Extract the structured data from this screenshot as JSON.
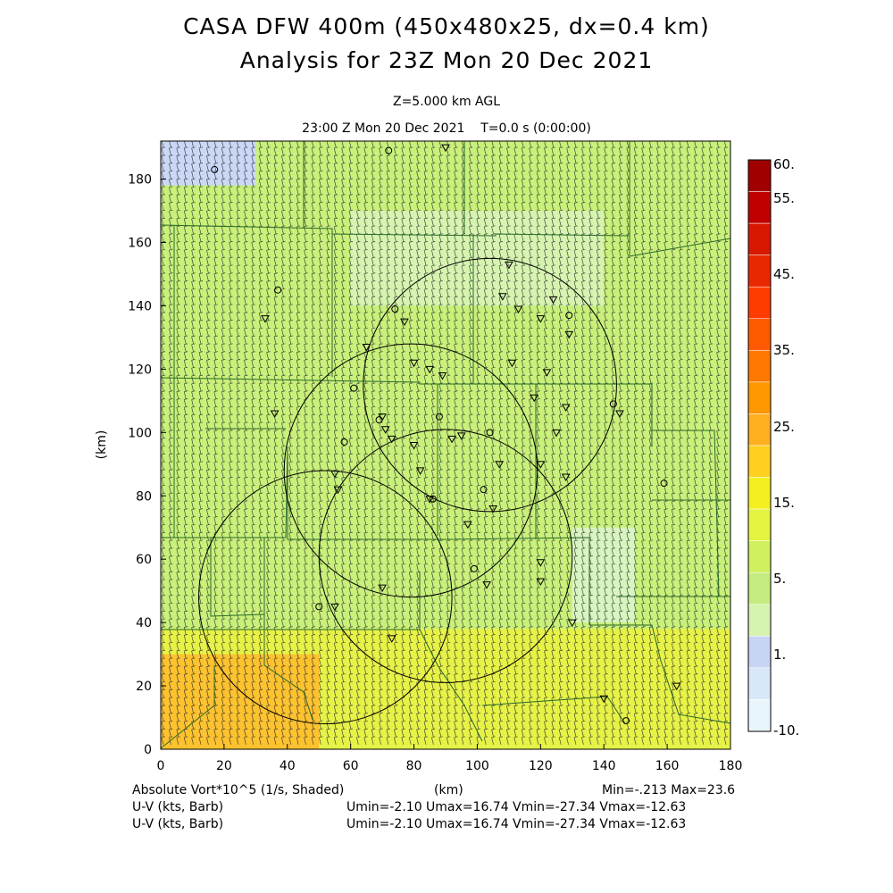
{
  "title_line1": "CASA DFW 400m (450x480x25, dx=0.4 km)",
  "title_line2": "Analysis for 23Z Mon 20 Dec 2021",
  "level_label": "Z=5.000 km AGL",
  "time_label": "23:00 Z Mon 20 Dec 2021    T=0.0 s (0:00:00)",
  "footer": {
    "field_label": "Absolute Vort*10^5 (1/s, Shaded)",
    "x_unit": "(km)",
    "minmax": "Min=-.213 Max=23.6",
    "barb_label_1": "U-V (kts, Barb)",
    "barb_stats_1": "Umin=-2.10 Umax=16.74 Vmin=-27.34 Vmax=-12.63",
    "barb_label_2": "U-V (kts, Barb)",
    "barb_stats_2": "Umin=-2.10 Umax=16.74 Vmin=-27.34 Vmax=-12.63"
  },
  "chart_data": {
    "type": "heatmap",
    "x_axis": {
      "label": "(km)",
      "range": [
        0,
        180
      ],
      "ticks": [
        0,
        20,
        40,
        60,
        80,
        100,
        120,
        140,
        160,
        180
      ]
    },
    "y_axis": {
      "label": "(km)",
      "range": [
        0,
        192
      ],
      "ticks": [
        0,
        20,
        40,
        60,
        80,
        100,
        120,
        140,
        160,
        180
      ]
    },
    "colorbar": {
      "labels": [
        "60.",
        "55.",
        "45.",
        "35.",
        "25.",
        "15.",
        "5.",
        "1.",
        "-10."
      ],
      "colors": [
        "#a00000",
        "#c00000",
        "#d81800",
        "#e82800",
        "#ff3c00",
        "#ff5a00",
        "#ff7800",
        "#ff9800",
        "#ffb020",
        "#ffd020",
        "#f4f020",
        "#e4f440",
        "#d0f060",
        "#c4ec80",
        "#d4f4b0",
        "#c8d4f4",
        "#d8e8f8",
        "#e8f6fc"
      ]
    },
    "field_regions": [
      {
        "name": "base",
        "x": [
          0,
          180
        ],
        "y": [
          0,
          192
        ],
        "value": 8,
        "color": "#c8f07a"
      },
      {
        "name": "upper-left-low",
        "x": [
          0,
          30
        ],
        "y": [
          178,
          192
        ],
        "value": 1.5,
        "color": "#cad8f6"
      },
      {
        "name": "north-pale",
        "x": [
          60,
          140
        ],
        "y": [
          140,
          170
        ],
        "value": 5,
        "color": "#d6f4b0"
      },
      {
        "name": "southwest-yellow",
        "x": [
          0,
          180
        ],
        "y": [
          0,
          38
        ],
        "value": 15,
        "color": "#e6f248"
      },
      {
        "name": "southwest-orange",
        "x": [
          0,
          50
        ],
        "y": [
          0,
          30
        ],
        "value": 24,
        "color": "#fcc230"
      },
      {
        "name": "east-pale",
        "x": [
          130,
          150
        ],
        "y": [
          40,
          70
        ],
        "value": 4,
        "color": "#d8f4c0"
      }
    ],
    "radar_circles": [
      {
        "cx": 104,
        "cy": 115,
        "r": 40
      },
      {
        "cx": 79,
        "cy": 88,
        "r": 40
      },
      {
        "cx": 90,
        "cy": 61,
        "r": 40
      },
      {
        "cx": 52,
        "cy": 48,
        "r": 40
      }
    ],
    "triangles": [
      [
        110,
        153
      ],
      [
        108,
        143
      ],
      [
        113,
        139
      ],
      [
        124,
        142
      ],
      [
        120,
        136
      ],
      [
        129,
        131
      ],
      [
        128,
        108
      ],
      [
        90,
        190
      ],
      [
        65,
        127
      ],
      [
        77,
        135
      ],
      [
        33,
        136
      ],
      [
        80,
        122
      ],
      [
        85,
        120
      ],
      [
        89,
        118
      ],
      [
        111,
        122
      ],
      [
        122,
        119
      ],
      [
        118,
        111
      ],
      [
        145,
        106
      ],
      [
        125,
        100
      ],
      [
        107,
        90
      ],
      [
        120,
        90
      ],
      [
        73,
        98
      ],
      [
        80,
        96
      ],
      [
        92,
        98
      ],
      [
        95,
        99
      ],
      [
        55,
        87
      ],
      [
        56,
        82
      ],
      [
        82,
        88
      ],
      [
        85,
        79
      ],
      [
        105,
        76
      ],
      [
        97,
        71
      ],
      [
        120,
        59
      ],
      [
        103,
        52
      ],
      [
        70,
        51
      ],
      [
        55,
        45
      ],
      [
        73,
        35
      ],
      [
        130,
        40
      ],
      [
        120,
        53
      ],
      [
        140,
        16
      ],
      [
        163,
        20
      ],
      [
        70,
        105
      ],
      [
        71,
        101
      ],
      [
        36,
        106
      ],
      [
        128,
        86
      ]
    ],
    "circles_markers": [
      [
        72,
        189
      ],
      [
        17,
        183
      ],
      [
        37,
        145
      ],
      [
        74,
        139
      ],
      [
        129,
        137
      ],
      [
        61,
        114
      ],
      [
        143,
        109
      ],
      [
        69,
        104
      ],
      [
        88,
        105
      ],
      [
        58,
        97
      ],
      [
        104,
        100
      ],
      [
        102,
        82
      ],
      [
        159,
        84
      ],
      [
        99,
        57
      ],
      [
        50,
        45
      ],
      [
        147,
        9
      ],
      [
        86,
        79
      ]
    ]
  }
}
